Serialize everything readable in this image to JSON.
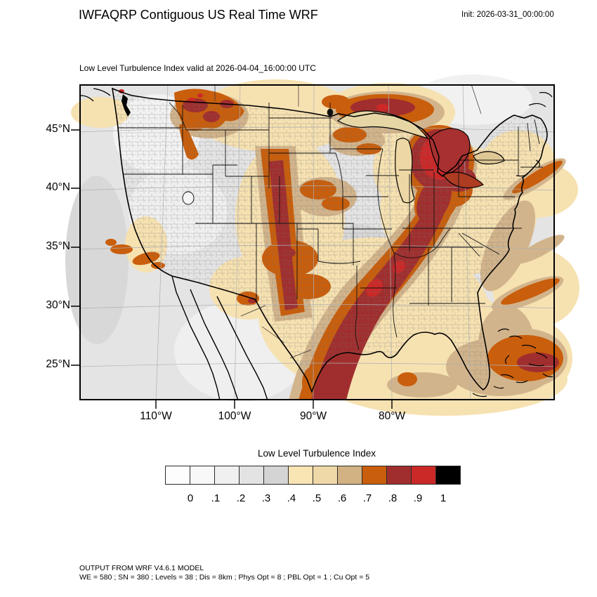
{
  "header": {
    "title": "IWFAQRP Contiguous US Real Time WRF",
    "init_label": "Init: 2026-03-31_00:00:00"
  },
  "map": {
    "subtitle": "Low Level Turbulence Index valid at 2026-04-04_16:00:00 UTC"
  },
  "axes": {
    "lat_ticks": [
      "45°N",
      "40°N",
      "35°N",
      "30°N",
      "25°N"
    ],
    "lon_ticks": [
      "110°W",
      "100°W",
      "90°W",
      "80°W"
    ]
  },
  "colorbar": {
    "title": "Low Level Turbulence Index",
    "tick_labels": [
      "0",
      ".1",
      ".2",
      ".3",
      ".4",
      ".5",
      ".6",
      ".7",
      ".8",
      ".9",
      "1"
    ],
    "colors": [
      "#FDFDFD",
      "#F8F8F8",
      "#F0F0F0",
      "#E3E3E3",
      "#D4D4D4",
      "#F9E4B3",
      "#F0D9A8",
      "#D2B283",
      "#C95E0C",
      "#A12E2E",
      "#CB2828",
      "#000000"
    ]
  },
  "footer": {
    "line1": "OUTPUT FROM WRF V4.6.1 MODEL",
    "line2": "WE = 580 ; SN = 380 ; Levels = 38 ; Dis = 8km ; Phys Opt = 8 ; PBL Opt = 1 ; Cu Opt = 5"
  },
  "chart_data": {
    "type": "heatmap",
    "title": "IWFAQRP Contiguous US Real Time WRF",
    "subtitle": "Low Level Turbulence Index valid at 2026-04-04_16:00:00 UTC",
    "init_time": "2026-03-31_00:00:00",
    "colorbar_title": "Low Level Turbulence Index",
    "levels": [
      0,
      0.1,
      0.2,
      0.3,
      0.4,
      0.5,
      0.6,
      0.7,
      0.8,
      0.9,
      1
    ],
    "colors": [
      "#FDFDFD",
      "#F8F8F8",
      "#F0F0F0",
      "#E3E3E3",
      "#D4D4D4",
      "#F9E4B3",
      "#F0D9A8",
      "#D2B283",
      "#C95E0C",
      "#A12E2E",
      "#CB2828",
      "#000000"
    ],
    "x_tick_labels": [
      "110°W",
      "100°W",
      "90°W",
      "80°W"
    ],
    "y_tick_labels": [
      "45°N",
      "40°N",
      "35°N",
      "30°N",
      "25°N"
    ],
    "legend_position": "bottom",
    "high_value_regions": [
      "western Montana",
      "Ontario north of Lake Superior",
      "northern Michigan and Lake Huron",
      "eastern Colorado to western Kansas band",
      "south Texas through Arkansas, Kentucky and Ohio valley diagonal band",
      "Bahamas / far southeast of map"
    ]
  }
}
